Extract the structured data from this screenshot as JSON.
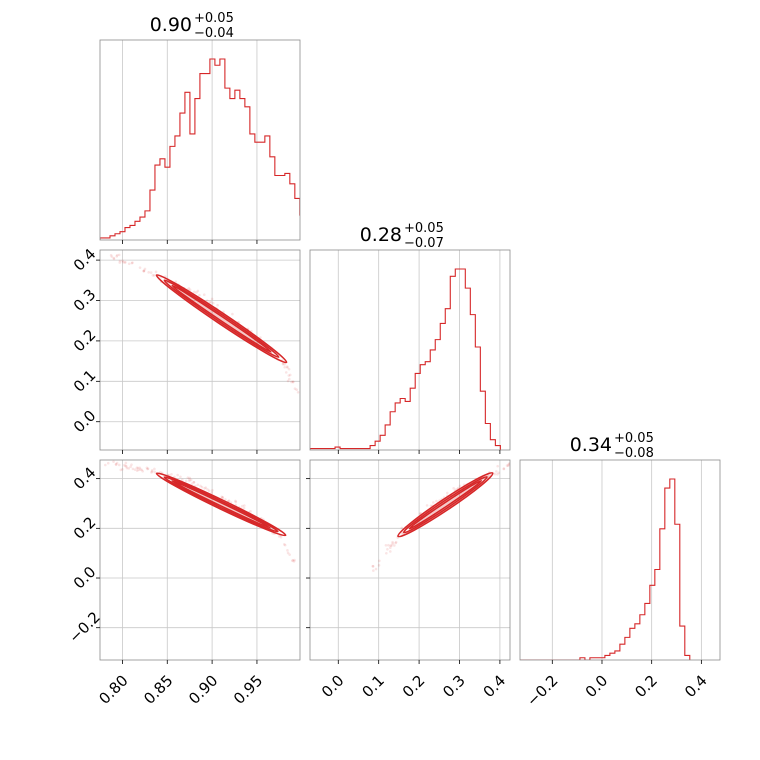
{
  "chart_data": {
    "type": "corner",
    "color": "#d62728",
    "grid": true,
    "parameters": [
      {
        "title": {
          "median": "0.90",
          "plus": "+0.05",
          "minus": "−0.04"
        },
        "range": [
          0.775,
          0.998
        ]
      },
      {
        "title": {
          "median": "0.28",
          "plus": "+0.05",
          "minus": "−0.07"
        },
        "range": [
          -0.07,
          0.425
        ]
      },
      {
        "title": {
          "median": "0.34",
          "plus": "+0.05",
          "minus": "−0.08"
        },
        "range": [
          -0.33,
          0.475
        ]
      }
    ],
    "ticks": {
      "p0": {
        "values": [
          0.8,
          0.85,
          0.9,
          0.95
        ],
        "labels": [
          "0.80",
          "0.85",
          "0.90",
          "0.95"
        ]
      },
      "p1": {
        "values": [
          0.0,
          0.1,
          0.2,
          0.3,
          0.4
        ],
        "labels": [
          "0.0",
          "0.1",
          "0.2",
          "0.3",
          "0.4"
        ]
      },
      "p2": {
        "values": [
          -0.2,
          0.0,
          0.2,
          0.4
        ],
        "labels": [
          "−0.2",
          "0.0",
          "0.2",
          "0.4"
        ]
      }
    },
    "histograms": [
      {
        "param": 0,
        "bin_start": 0.775,
        "bin_width": 0.00557,
        "counts": [
          1,
          1,
          2,
          3,
          4,
          6,
          7,
          9,
          11,
          14,
          24,
          36,
          39,
          35,
          45,
          50,
          61,
          71,
          51,
          68,
          80,
          80,
          87,
          84,
          87,
          73,
          68,
          72,
          68,
          64,
          51,
          47,
          47,
          50,
          40,
          31,
          31,
          32,
          27,
          20,
          12
        ]
      },
      {
        "param": 1,
        "bin_start": -0.07,
        "bin_width": 0.0124,
        "counts": [
          1,
          1,
          1,
          1,
          1,
          2,
          1,
          1,
          1,
          1,
          1,
          1,
          3,
          6,
          10,
          17,
          26,
          32,
          35,
          33,
          42,
          52,
          58,
          60,
          68,
          75,
          86,
          96,
          118,
          123,
          123,
          110,
          92,
          70,
          40,
          18,
          7,
          3
        ]
      },
      {
        "param": 2,
        "bin_start": -0.33,
        "bin_width": 0.0201,
        "counts": [
          0,
          0,
          0,
          0,
          0,
          0,
          0,
          0,
          0,
          0,
          0,
          0,
          1,
          0,
          1,
          1,
          1,
          2,
          3,
          4,
          7,
          10,
          14,
          16,
          20,
          25,
          33,
          40,
          58,
          76,
          80,
          60,
          15,
          2
        ]
      }
    ],
    "scatter_ridges": [
      {
        "x_param": 0,
        "y_param": 1,
        "x": [
          0.78,
          0.8,
          0.82,
          0.84,
          0.86,
          0.88,
          0.9,
          0.92,
          0.94,
          0.96,
          0.98,
          0.995
        ],
        "y": [
          0.415,
          0.4,
          0.38,
          0.36,
          0.34,
          0.32,
          0.29,
          0.26,
          0.23,
          0.19,
          0.145,
          0.07
        ]
      },
      {
        "x_param": 0,
        "y_param": 2,
        "x": [
          0.78,
          0.8,
          0.82,
          0.84,
          0.86,
          0.88,
          0.9,
          0.92,
          0.94,
          0.96,
          0.98,
          0.995
        ],
        "y": [
          0.465,
          0.45,
          0.44,
          0.425,
          0.41,
          0.385,
          0.35,
          0.31,
          0.27,
          0.22,
          0.15,
          0.03
        ]
      },
      {
        "x_param": 1,
        "y_param": 2,
        "x": [
          0.08,
          0.12,
          0.15,
          0.18,
          0.21,
          0.24,
          0.27,
          0.3,
          0.33,
          0.36,
          0.39,
          0.42
        ],
        "y": [
          0.03,
          0.1,
          0.17,
          0.215,
          0.26,
          0.295,
          0.33,
          0.355,
          0.38,
          0.4,
          0.43,
          0.46
        ]
      }
    ],
    "contours": [
      {
        "x_param": 0,
        "y_param": 1,
        "x0": 0.838,
        "y0": 0.363,
        "x1": 0.983,
        "y1": 0.147,
        "half_widths": [
          0.013,
          0.009,
          0.005
        ]
      },
      {
        "x_param": 0,
        "y_param": 2,
        "x0": 0.838,
        "y0": 0.421,
        "x1": 0.982,
        "y1": 0.172,
        "half_widths": [
          0.018,
          0.012,
          0.006
        ]
      },
      {
        "x_param": 1,
        "y_param": 2,
        "x0": 0.148,
        "y0": 0.168,
        "x1": 0.382,
        "y1": 0.422,
        "half_widths": [
          0.022,
          0.015,
          0.008
        ]
      }
    ]
  }
}
